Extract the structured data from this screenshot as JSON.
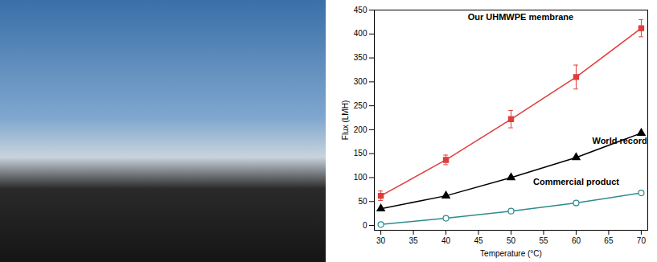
{
  "chart_data": {
    "type": "line",
    "x_label": "Temperature (°C)",
    "y_label": "Flux (LMH)",
    "x": [
      30,
      40,
      50,
      60,
      70
    ],
    "series": [
      {
        "name": "Our UHMWPE membrane",
        "color": "#e03c3c",
        "marker": "square",
        "values": [
          62,
          137,
          222,
          310,
          412
        ],
        "errors": [
          10,
          10,
          18,
          25,
          18
        ]
      },
      {
        "name": "World record",
        "color": "#000000",
        "marker": "triangle",
        "values": [
          35,
          62,
          100,
          142,
          193
        ]
      },
      {
        "name": "Commercial product",
        "color": "#2e8b8b",
        "marker": "open-circle",
        "values": [
          2,
          15,
          30,
          47,
          68
        ]
      }
    ],
    "xlim": [
      29,
      71
    ],
    "xticks": [
      30,
      35,
      40,
      45,
      50,
      55,
      60,
      65,
      70
    ],
    "ylim": [
      -10,
      450
    ],
    "yticks": [
      0,
      50,
      100,
      150,
      200,
      250,
      300,
      350,
      400,
      450
    ],
    "grid": false
  }
}
